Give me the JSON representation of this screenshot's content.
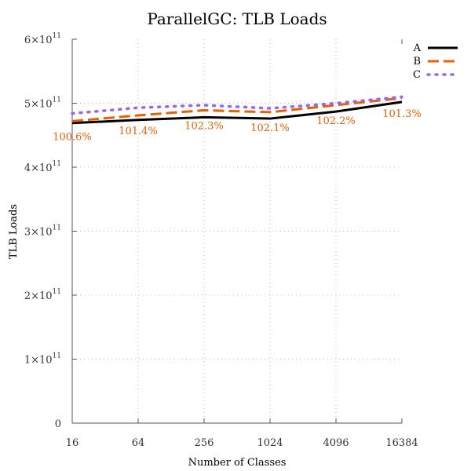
{
  "chart_data": {
    "type": "line",
    "title": "ParallelGC: TLB Loads",
    "xlabel": "Number of Classes",
    "ylabel": "TLB Loads",
    "x": [
      16,
      64,
      256,
      1024,
      4096,
      16384
    ],
    "x_tick_labels": [
      "16",
      "64",
      "256",
      "1024",
      "4096",
      "16384"
    ],
    "x_scale": "log2",
    "ylim": [
      0,
      600000000000
    ],
    "y_ticks": [
      0,
      100000000000,
      200000000000,
      300000000000,
      400000000000,
      500000000000,
      600000000000
    ],
    "y_tick_labels": [
      {
        "base": "0",
        "exp": ""
      },
      {
        "base": "1×10",
        "exp": "11"
      },
      {
        "base": "2×10",
        "exp": "11"
      },
      {
        "base": "3×10",
        "exp": "11"
      },
      {
        "base": "4×10",
        "exp": "11"
      },
      {
        "base": "5×10",
        "exp": "11"
      },
      {
        "base": "6×10",
        "exp": "11"
      }
    ],
    "grid": true,
    "legend_position": "top-right",
    "series": [
      {
        "name": "A",
        "color": "#000000",
        "style": "solid",
        "values": [
          469000000000,
          474000000000,
          478000000000,
          476000000000,
          487000000000,
          502000000000
        ]
      },
      {
        "name": "B",
        "color": "#e66100",
        "style": "dashed",
        "values": [
          472000000000,
          481000000000,
          489000000000,
          486000000000,
          497000000000,
          508000000000
        ]
      },
      {
        "name": "C",
        "color": "#9966ee",
        "style": "dotted",
        "values": [
          484000000000,
          493000000000,
          497000000000,
          492000000000,
          500000000000,
          510000000000
        ]
      }
    ],
    "annotations": {
      "color": "#e66100",
      "labels": [
        "100.6%",
        "101.4%",
        "102.3%",
        "102.1%",
        "102.2%",
        "101.3%"
      ]
    }
  }
}
